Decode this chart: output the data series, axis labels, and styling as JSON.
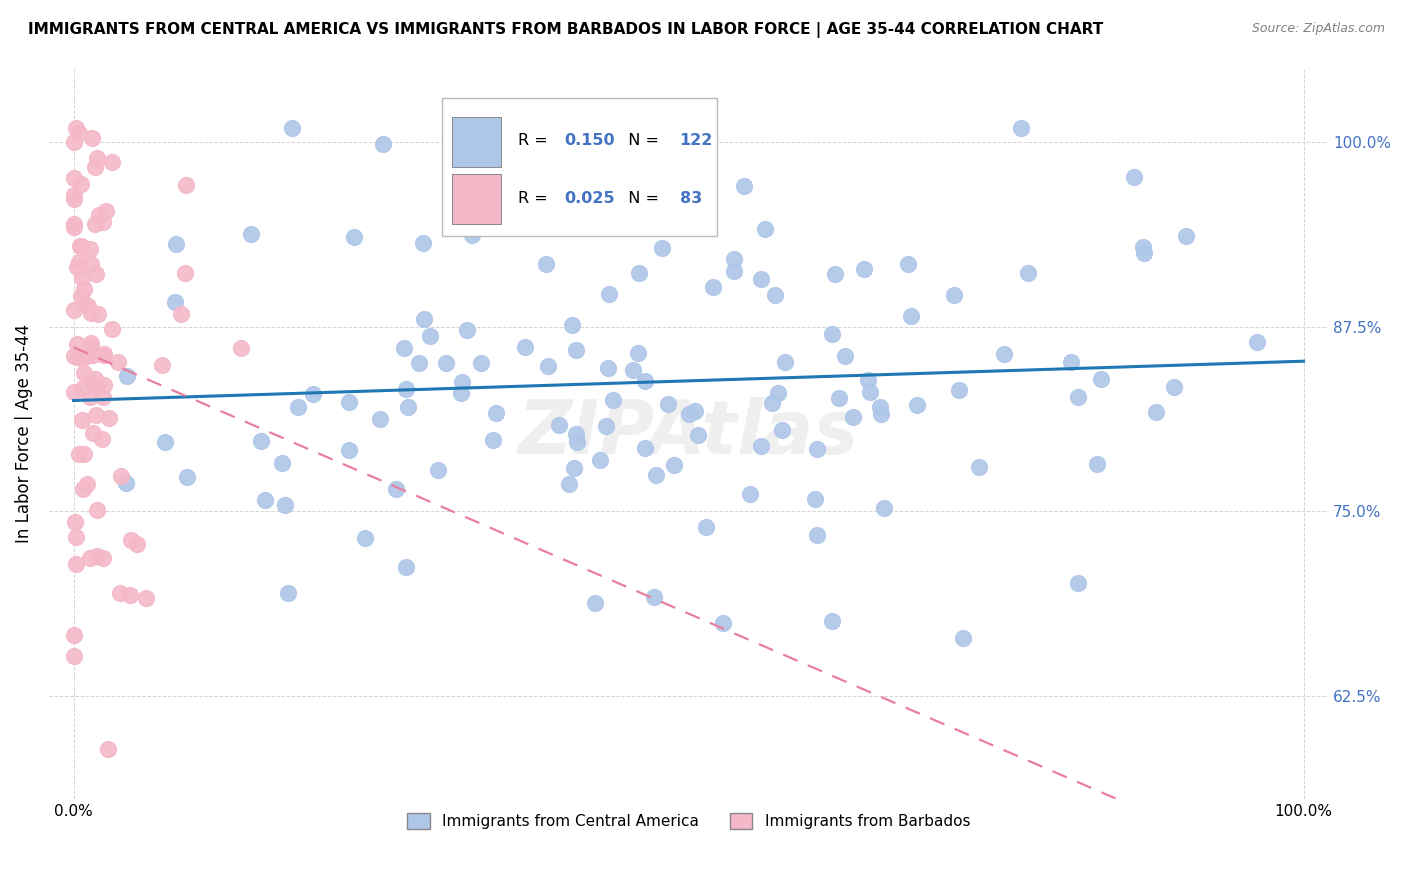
{
  "title": "IMMIGRANTS FROM CENTRAL AMERICA VS IMMIGRANTS FROM BARBADOS IN LABOR FORCE | AGE 35-44 CORRELATION CHART",
  "source": "Source: ZipAtlas.com",
  "ylabel": "In Labor Force | Age 35-44",
  "blue_R": 0.15,
  "blue_N": 122,
  "pink_R": 0.025,
  "pink_N": 83,
  "blue_color": "#aec6e8",
  "pink_color": "#f4b8c8",
  "blue_line_color": "#1f77b4",
  "pink_line_color": "#e87fa0",
  "legend_blue_label": "Immigrants from Central America",
  "legend_pink_label": "Immigrants from Barbados",
  "ytick_vals": [
    0.625,
    0.75,
    0.875,
    1.0
  ],
  "ytick_labels": [
    "62.5%",
    "75.0%",
    "87.5%",
    "100.0%"
  ],
  "xtick_vals": [
    0.0,
    1.0
  ],
  "xtick_labels": [
    "0.0%",
    "100.0%"
  ],
  "xlim": [
    -0.02,
    1.02
  ],
  "ylim": [
    0.555,
    1.05
  ]
}
